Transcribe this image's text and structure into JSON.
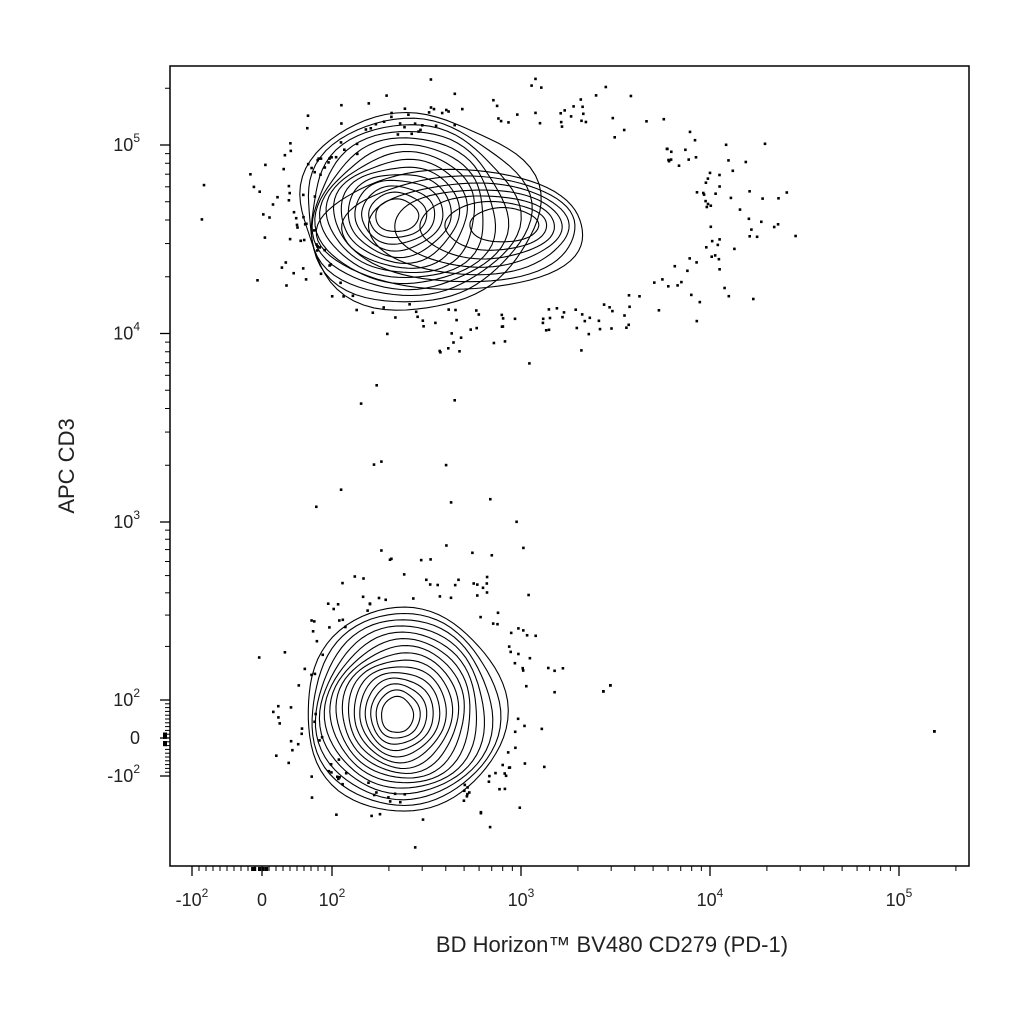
{
  "chart_data": {
    "type": "contour",
    "xlabel": "BD Horizon™ BV480 CD279 (PD-1)",
    "ylabel": "APC CD3",
    "x_scale": "biexponential",
    "y_scale": "biexponential",
    "xlim": [
      -300,
      250000
    ],
    "ylim": [
      -300,
      250000
    ],
    "grid": false,
    "legend": "none",
    "x_ticks": [
      {
        "value": -100,
        "base": "-10",
        "exp": "2"
      },
      {
        "value": 0,
        "base": "0",
        "exp": ""
      },
      {
        "value": 100,
        "base": "10",
        "exp": "2"
      },
      {
        "value": 1000,
        "base": "10",
        "exp": "3"
      },
      {
        "value": 10000,
        "base": "10",
        "exp": "4"
      },
      {
        "value": 100000,
        "base": "10",
        "exp": "5"
      }
    ],
    "y_ticks": [
      {
        "value": 100000,
        "base": "10",
        "exp": "5"
      },
      {
        "value": 10000,
        "base": "10",
        "exp": "4"
      },
      {
        "value": 1000,
        "base": "10",
        "exp": "3"
      },
      {
        "value": 100,
        "base": "10",
        "exp": "2"
      },
      {
        "value": 0,
        "base": "0",
        "exp": ""
      },
      {
        "value": -100,
        "base": "-10",
        "exp": "2"
      }
    ],
    "populations": [
      {
        "center": [
          220,
          42000
        ],
        "levels": 14
      },
      {
        "center": [
          900,
          38000
        ],
        "levels": 7
      },
      {
        "center": [
          220,
          60
        ],
        "levels": 15
      }
    ],
    "color": "#000000"
  }
}
